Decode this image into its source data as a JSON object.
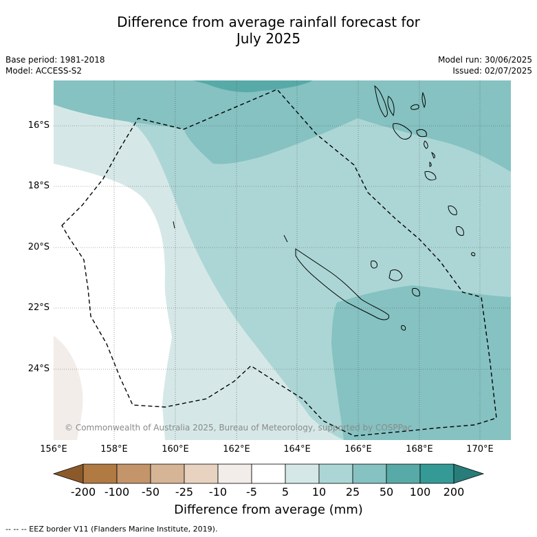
{
  "title": {
    "line1": "Difference from average rainfall forecast for",
    "line2": "July 2025"
  },
  "meta": {
    "base_period": "Base period: 1981-2018",
    "model": "Model: ACCESS-S2",
    "model_run": "Model run: 30/06/2025",
    "issued": "Issued: 02/07/2025"
  },
  "latitude_labels": [
    "16°S",
    "18°S",
    "20°S",
    "22°S",
    "24°S"
  ],
  "longitude_labels": [
    "156°E",
    "158°E",
    "160°E",
    "162°E",
    "164°E",
    "166°E",
    "168°E",
    "170°E"
  ],
  "colorbar": {
    "tick_labels": [
      "-200",
      "-100",
      "-50",
      "-25",
      "-10",
      "-5",
      "5",
      "10",
      "25",
      "50",
      "100",
      "200"
    ],
    "colors": [
      "#8c5a2a",
      "#b07a42",
      "#c4956a",
      "#d6b496",
      "#e8d3c0",
      "#f2ede9",
      "#ffffff",
      "#d5e8e7",
      "#acd6d5",
      "#85c2c1",
      "#58aaa8",
      "#359a96",
      "#287d7a"
    ],
    "label": "Difference from average (mm)"
  },
  "copyright": "© Commonwealth of Australia 2025, Bureau of Meteorology, supported by COSPPac",
  "footer": "--  --  -- EEZ border V11 (Flanders Marine Institute, 2019)."
}
